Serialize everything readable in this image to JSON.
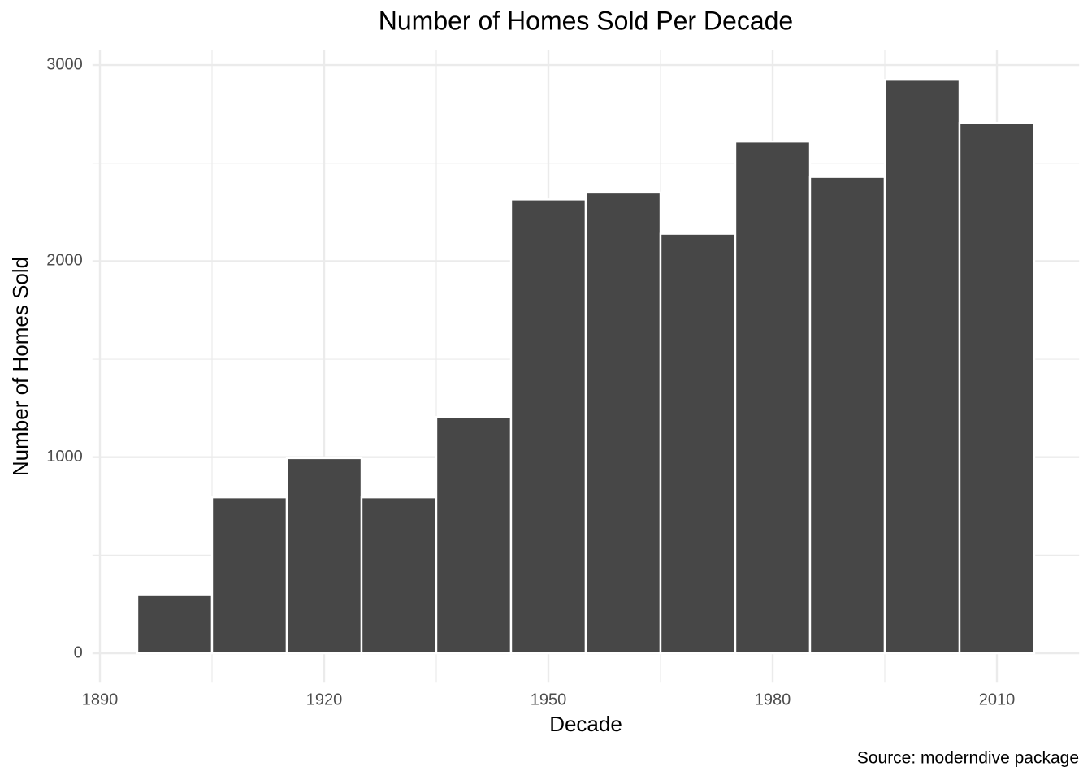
{
  "chart_data": {
    "type": "histogram",
    "title": "Number of Homes Sold Per Decade",
    "x_label": "Decade",
    "y_label": "Number of Homes Sold",
    "caption": "Source: moderndive package",
    "bins": [
      1895,
      1905,
      1915,
      1925,
      1935,
      1945,
      1955,
      1965,
      1975,
      1985,
      1995,
      2005,
      2015
    ],
    "values": [
      300,
      795,
      995,
      795,
      1205,
      2315,
      2350,
      2140,
      2610,
      2430,
      2925,
      2705
    ],
    "color": "#474747",
    "xlim": [
      1889,
      2021
    ],
    "xticks": [
      1890,
      1920,
      1950,
      1980,
      2010
    ],
    "xminorticks": [
      1905,
      1935,
      1965,
      1995
    ],
    "ylim": [
      -150,
      3075
    ],
    "yticks": [
      0,
      1000,
      2000,
      3000
    ],
    "yminorticks": [
      500,
      1500,
      2500
    ],
    "grid": true
  }
}
